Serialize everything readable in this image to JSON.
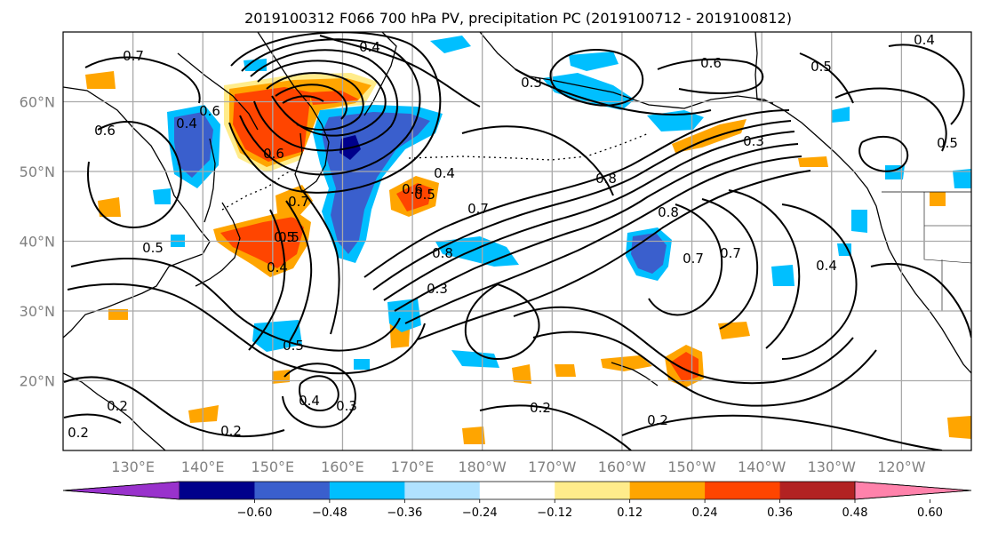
{
  "title": "2019100312 F066 700 hPa PV, precipitation PC (2019100712 - 2019100812)",
  "map": {
    "projection": "PlateCarree (centered 180°)",
    "extent": {
      "lon_west": 120,
      "lon_east": 250,
      "lat_south": 10,
      "lat_north": 70
    },
    "gridlines": true,
    "lon_ticks": [
      130,
      140,
      150,
      160,
      170,
      180,
      190,
      200,
      210,
      220,
      230,
      240
    ],
    "lon_labels": [
      "130°E",
      "140°E",
      "150°E",
      "160°E",
      "170°E",
      "180°W",
      "170°W",
      "160°W",
      "150°W",
      "140°W",
      "130°W",
      "120°W"
    ],
    "lat_ticks": [
      20,
      30,
      40,
      50,
      60
    ],
    "lat_labels": [
      "20°N",
      "30°N",
      "40°N",
      "50°N",
      "60°N"
    ],
    "contour_color": "#000000",
    "contour_labels": [
      "0.5",
      "0.6",
      "0.7",
      "0.4",
      "0.6",
      "0.4",
      "0.7",
      "0.5",
      "0.6",
      "0.4",
      "0.5",
      "0.7",
      "0.6",
      "0.3",
      "0.8",
      "0.4",
      "0.5",
      "0.5",
      "0.8",
      "0.7",
      "0.3",
      "0.8",
      "0.6",
      "0.4",
      "0.7",
      "0.5",
      "0.4",
      "0.5",
      "0.3",
      "0.3",
      "0.4",
      "0.2",
      "0.2",
      "0.2",
      "0.2",
      "0.2"
    ]
  },
  "colorbar": {
    "colors": [
      "#9932cc",
      "#00008b",
      "#3a5fcd",
      "#00bfff",
      "#b0e2ff",
      "#ffffff",
      "#ffec8b",
      "#ffa500",
      "#ff4500",
      "#b22222",
      "#ff82ab"
    ],
    "tick_labels": [
      "−0.60",
      "−0.48",
      "−0.36",
      "−0.24",
      "−0.12",
      "0.12",
      "0.24",
      "0.36",
      "0.48",
      "0.60"
    ],
    "extend": "both"
  },
  "chart_data": {
    "type": "heatmap",
    "title": "2019100312 F066 700 hPa PV, precipitation PC (2019100712 - 2019100812)",
    "field_shaded": "precipitation PC (shaded)",
    "field_contoured": "700 hPa PV (black contours)",
    "levels": [
      -0.6,
      -0.48,
      -0.36,
      -0.24,
      -0.12,
      0.12,
      0.24,
      0.36,
      0.48,
      0.6
    ],
    "xlim": [
      120,
      250
    ],
    "ylim": [
      10,
      70
    ],
    "shaded_features": [
      {
        "lon": 151,
        "lat": 56,
        "value": 0.48
      },
      {
        "lon": 143,
        "lat": 42,
        "value": 0.36
      },
      {
        "lon": 139,
        "lat": 53,
        "value": -0.36
      },
      {
        "lon": 162,
        "lat": 46,
        "value": -0.36
      },
      {
        "lon": 163,
        "lat": 55,
        "value": -0.48
      },
      {
        "lon": 170,
        "lat": 45,
        "value": 0.36
      },
      {
        "lon": 204,
        "lat": 39,
        "value": -0.36
      },
      {
        "lon": 206,
        "lat": 21,
        "value": 0.36
      },
      {
        "lon": 213,
        "lat": 53,
        "value": 0.24
      },
      {
        "lon": 183,
        "lat": 38,
        "value": -0.24
      },
      {
        "lon": 152,
        "lat": 27,
        "value": -0.24
      },
      {
        "lon": 168,
        "lat": 26,
        "value": -0.24
      }
    ]
  }
}
